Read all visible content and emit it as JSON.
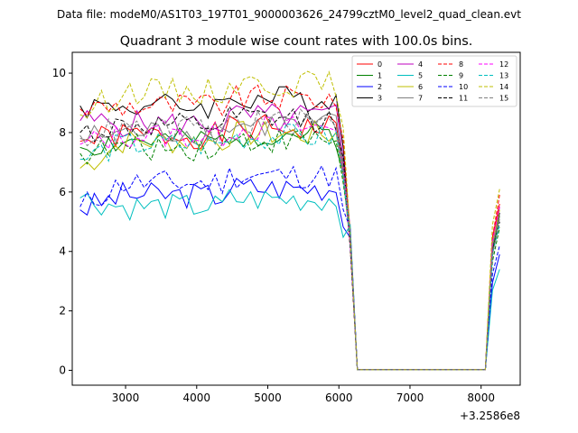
{
  "chart_data": {
    "type": "line",
    "suptitle": "Data file: modeM0/AS1T03_197T01_9000003626_24799cztM0_level2_quad_clean.evt",
    "title": "Quadrant 3 module wise count rates with 100.0s bins.",
    "xlabel": "",
    "ylabel": "",
    "x_offset_label": "+3.2586e8",
    "xlim": [
      2250,
      8550
    ],
    "ylim": [
      -0.5,
      10.7
    ],
    "xticks": [
      3000,
      4000,
      5000,
      6000,
      7000,
      8000
    ],
    "yticks": [
      0,
      2,
      4,
      6,
      8,
      10
    ],
    "x": [
      2360,
      2460,
      2560,
      2660,
      2760,
      2860,
      2960,
      3060,
      3160,
      3260,
      3360,
      3460,
      3560,
      3660,
      3760,
      3860,
      3960,
      4060,
      4160,
      4260,
      4360,
      4460,
      4560,
      4660,
      4760,
      4860,
      4960,
      5060,
      5160,
      5260,
      5360,
      5460,
      5560,
      5660,
      5760,
      5860,
      5960,
      6060,
      6160,
      6260,
      6360,
      6460,
      6560,
      6660,
      6760,
      6860,
      6960,
      7060,
      7160,
      7260,
      7360,
      7460,
      7560,
      7660,
      7760,
      7860,
      7960,
      8060,
      8160,
      8260
    ],
    "legend": {
      "position": "top-right",
      "columns": 4
    },
    "series": [
      {
        "name": "0",
        "color": "#ff0000",
        "dash": false,
        "level": 7.9,
        "start": 7.7,
        "end": 5.6,
        "seed": 1
      },
      {
        "name": "1",
        "color": "#008000",
        "dash": false,
        "level": 7.7,
        "start": 7.5,
        "end": 5.2,
        "seed": 2
      },
      {
        "name": "2",
        "color": "#0000ff",
        "dash": false,
        "level": 5.9,
        "start": 5.4,
        "end": 3.9,
        "seed": 3
      },
      {
        "name": "3",
        "color": "#000000",
        "dash": false,
        "level": 8.9,
        "start": 8.9,
        "end": 5.3,
        "seed": 4
      },
      {
        "name": "4",
        "color": "#bf00bf",
        "dash": false,
        "level": 8.3,
        "start": 8.4,
        "end": 5.5,
        "seed": 5
      },
      {
        "name": "5",
        "color": "#00bfbf",
        "dash": false,
        "level": 5.5,
        "start": 5.8,
        "end": 3.4,
        "seed": 6
      },
      {
        "name": "6",
        "color": "#bfbf00",
        "dash": false,
        "level": 7.7,
        "start": 6.8,
        "end": 5.4,
        "seed": 7
      },
      {
        "name": "7",
        "color": "#808080",
        "dash": false,
        "level": 8.0,
        "start": 7.8,
        "end": 5.2,
        "seed": 8
      },
      {
        "name": "8",
        "color": "#ff0000",
        "dash": true,
        "level": 8.9,
        "start": 8.8,
        "end": 5.9,
        "seed": 9
      },
      {
        "name": "9",
        "color": "#008000",
        "dash": true,
        "level": 7.5,
        "start": 7.3,
        "end": 4.8,
        "seed": 10
      },
      {
        "name": "10",
        "color": "#0000ff",
        "dash": true,
        "level": 6.3,
        "start": 5.5,
        "end": 4.2,
        "seed": 11
      },
      {
        "name": "11",
        "color": "#000000",
        "dash": true,
        "level": 8.2,
        "start": 8.0,
        "end": 5.0,
        "seed": 12
      },
      {
        "name": "12",
        "color": "#ff00ff",
        "dash": true,
        "level": 7.9,
        "start": 7.6,
        "end": 5.5,
        "seed": 13
      },
      {
        "name": "13",
        "color": "#00bfbf",
        "dash": true,
        "level": 7.6,
        "start": 7.1,
        "end": 4.9,
        "seed": 14
      },
      {
        "name": "14",
        "color": "#bfbf00",
        "dash": true,
        "level": 9.4,
        "start": 8.6,
        "end": 6.1,
        "seed": 15
      },
      {
        "name": "15",
        "color": "#808080",
        "dash": true,
        "level": 8.1,
        "start": 7.9,
        "end": 5.1,
        "seed": 16
      }
    ]
  }
}
